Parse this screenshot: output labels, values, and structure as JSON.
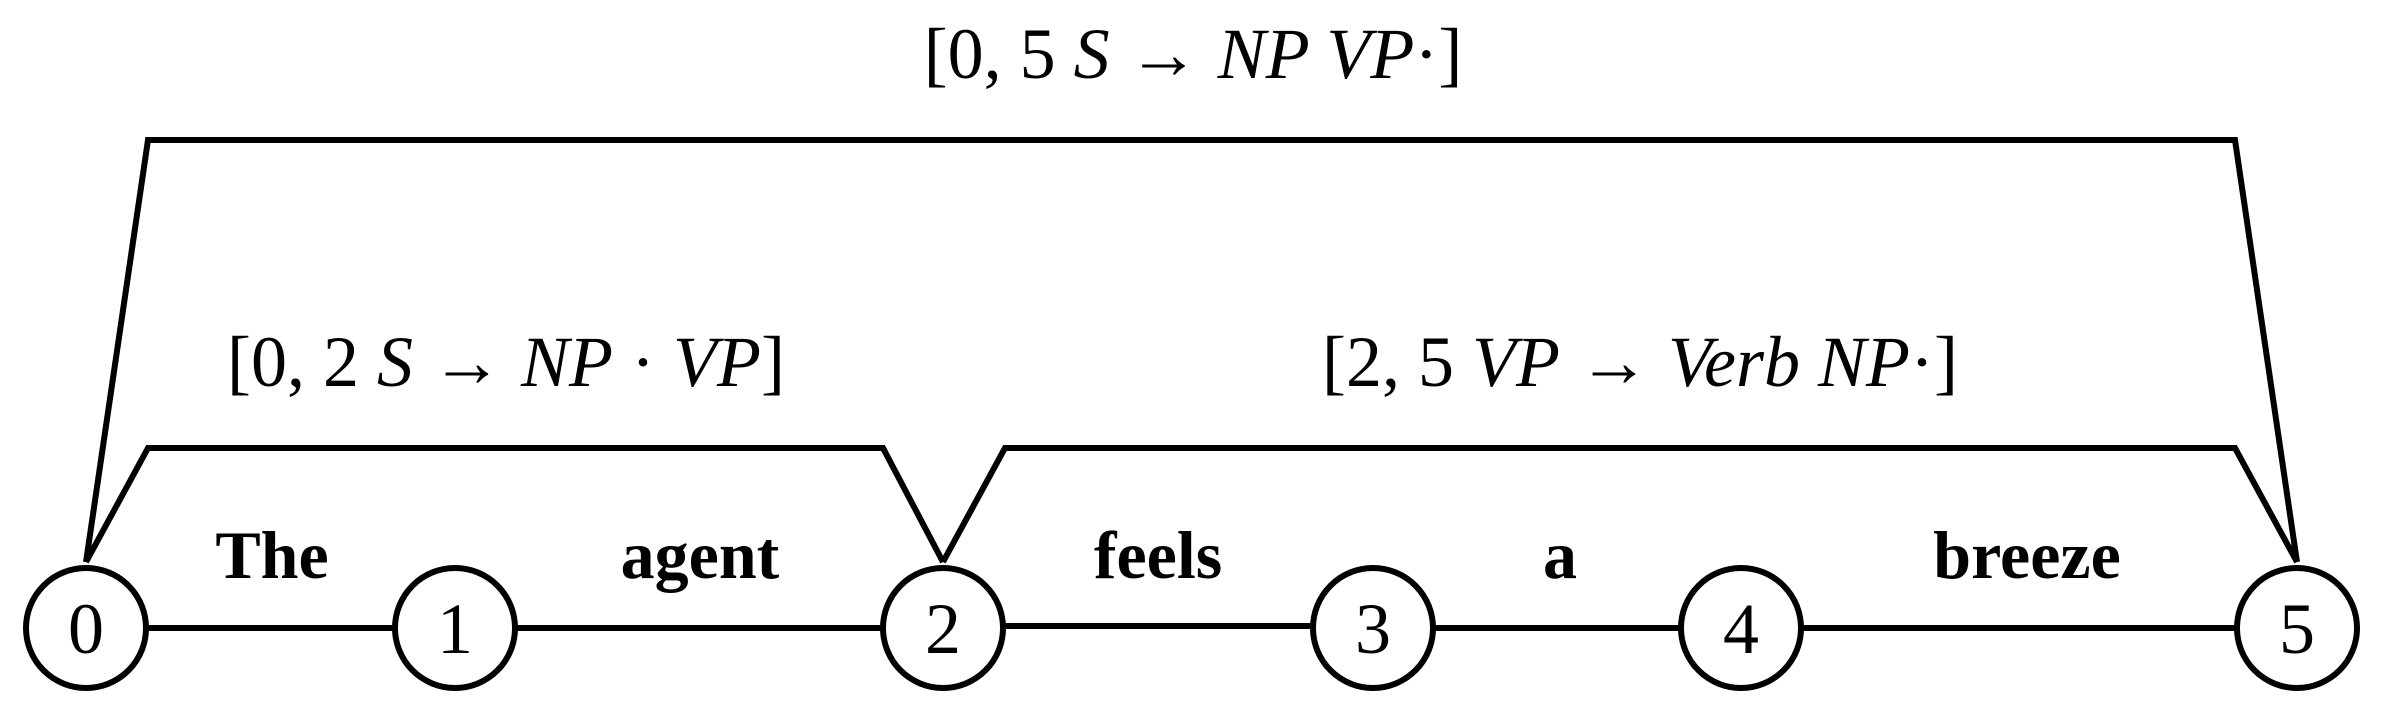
{
  "diagram": {
    "nodes": [
      "0",
      "1",
      "2",
      "3",
      "4",
      "5"
    ],
    "words": [
      "The",
      "agent",
      "feels",
      "a",
      "breeze"
    ],
    "arcs": [
      {
        "id": "arc-0-5",
        "open": "[0, 5 ",
        "lhs": "S",
        "arrow": "→",
        "rhs_before_dot": "NP VP",
        "dot": "·",
        "rhs_after_dot": "",
        "close": "]"
      },
      {
        "id": "arc-0-2",
        "open": "[0, 2 ",
        "lhs": "S",
        "arrow": "→",
        "rhs_before_dot": "NP",
        "dot": "·",
        "rhs_after_dot": "VP",
        "close": "]"
      },
      {
        "id": "arc-2-5",
        "open": "[2, 5 ",
        "lhs": "VP",
        "arrow": "→",
        "rhs_before_dot": "Verb NP",
        "dot": "·",
        "rhs_after_dot": "",
        "close": "]"
      }
    ]
  }
}
